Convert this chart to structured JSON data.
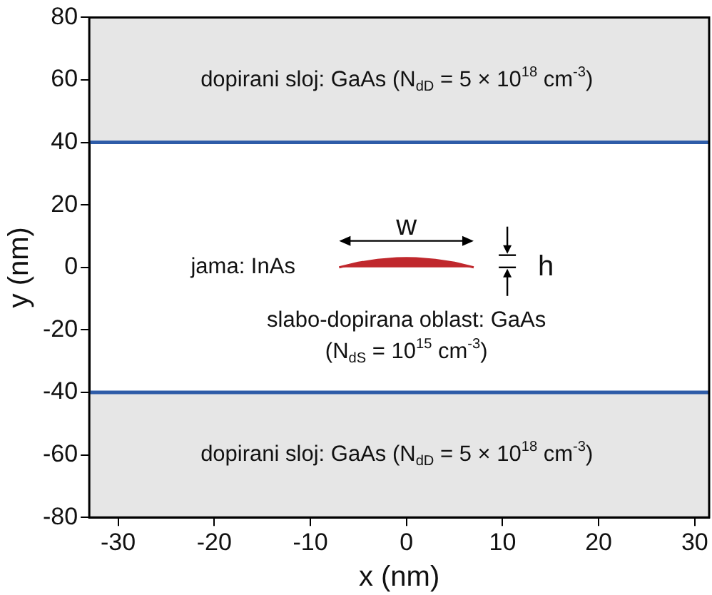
{
  "chart_data": {
    "type": "line",
    "xlabel": "x (nm)",
    "ylabel": "y (nm)",
    "xlim": [
      -33,
      31.5
    ],
    "xticks": [
      -30,
      -20,
      -10,
      0,
      10,
      20,
      30
    ],
    "ylim": [
      -80,
      80
    ],
    "yticks": [
      -80,
      -60,
      -40,
      -20,
      0,
      20,
      40,
      60,
      80
    ],
    "grid": false,
    "legend": false,
    "marker": "none",
    "series": [
      {
        "type": "area",
        "color": "#c0282d",
        "x": [
          -7,
          -5,
          -3,
          -1,
          0,
          1,
          3,
          5,
          7
        ],
        "values": [
          0,
          1.5,
          2.4,
          2.9,
          3,
          2.9,
          2.4,
          1.5,
          0
        ]
      }
    ],
    "bands": [
      {
        "axis": "y",
        "from": 40,
        "to": 80,
        "color": "#e6e6e6"
      },
      {
        "axis": "y",
        "from": -80,
        "to": -40,
        "color": "#e6e6e6"
      }
    ],
    "ref_lines": [
      {
        "axis": "y",
        "value": 40,
        "color": "#2e5ca8"
      },
      {
        "axis": "y",
        "value": -40,
        "color": "#2e5ca8"
      }
    ],
    "annotations": [
      "dopirani sloj: GaAs (N$_{dD}$ = 5 × 10$^{18}$ cm$^{-3}$)",
      "jama: InAs",
      "w",
      "h",
      "slabo-dopirana oblast: GaAs",
      "(N$_{dS}$ = 10$^{15}$ cm$^{-3}$)",
      "dopirani sloj: GaAs (N$_{dD}$ = 5 × 10$^{18}$ cm$^{-3}$)"
    ]
  }
}
